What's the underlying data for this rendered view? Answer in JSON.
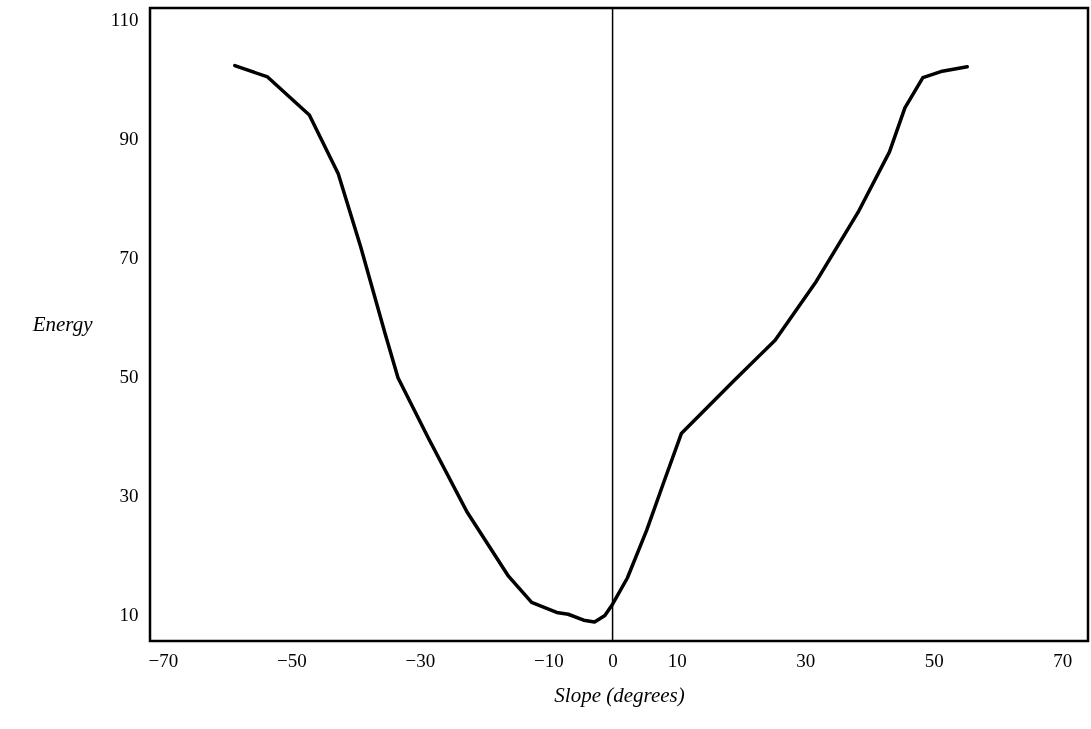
{
  "chart_data": {
    "type": "line",
    "xlabel": "Slope (degrees)",
    "ylabel": "Energy",
    "xlim": [
      -72,
      74
    ],
    "xticks": [
      -70,
      -50,
      -30,
      -10,
      0,
      10,
      30,
      50,
      70
    ],
    "ylim": [
      5.5,
      112
    ],
    "yticks": [
      10,
      30,
      50,
      70,
      90,
      110
    ],
    "grid": false,
    "marker": "none",
    "line_style": "solid",
    "ref_lines": [
      {
        "axis": "x",
        "value": 0,
        "color": "#000000"
      }
    ],
    "series": [
      {
        "color": "#000000",
        "x": [
          -58.8,
          -53.7,
          -47.2,
          -42.7,
          -39.2,
          -35.4,
          -33.4,
          -28.7,
          -22.7,
          -16.2,
          -12.6,
          -8.7,
          -6.9,
          -4.5,
          -2.8,
          -1.2,
          0,
          2.3,
          5.3,
          7.8,
          10.7,
          18.8,
          25.3,
          31.7,
          38.2,
          43.1,
          45.5,
          48.3,
          51.1,
          55.2
        ],
        "values": [
          102.3,
          100.4,
          94.0,
          84.1,
          71.8,
          57.2,
          49.8,
          39.7,
          27.3,
          16.4,
          12.0,
          10.3,
          10.0,
          9.0,
          8.7,
          9.8,
          11.7,
          16.1,
          24.1,
          31.7,
          40.4,
          49.2,
          56.1,
          66.0,
          77.6,
          87.8,
          95.2,
          100.3,
          101.3,
          102.1
        ]
      }
    ]
  }
}
